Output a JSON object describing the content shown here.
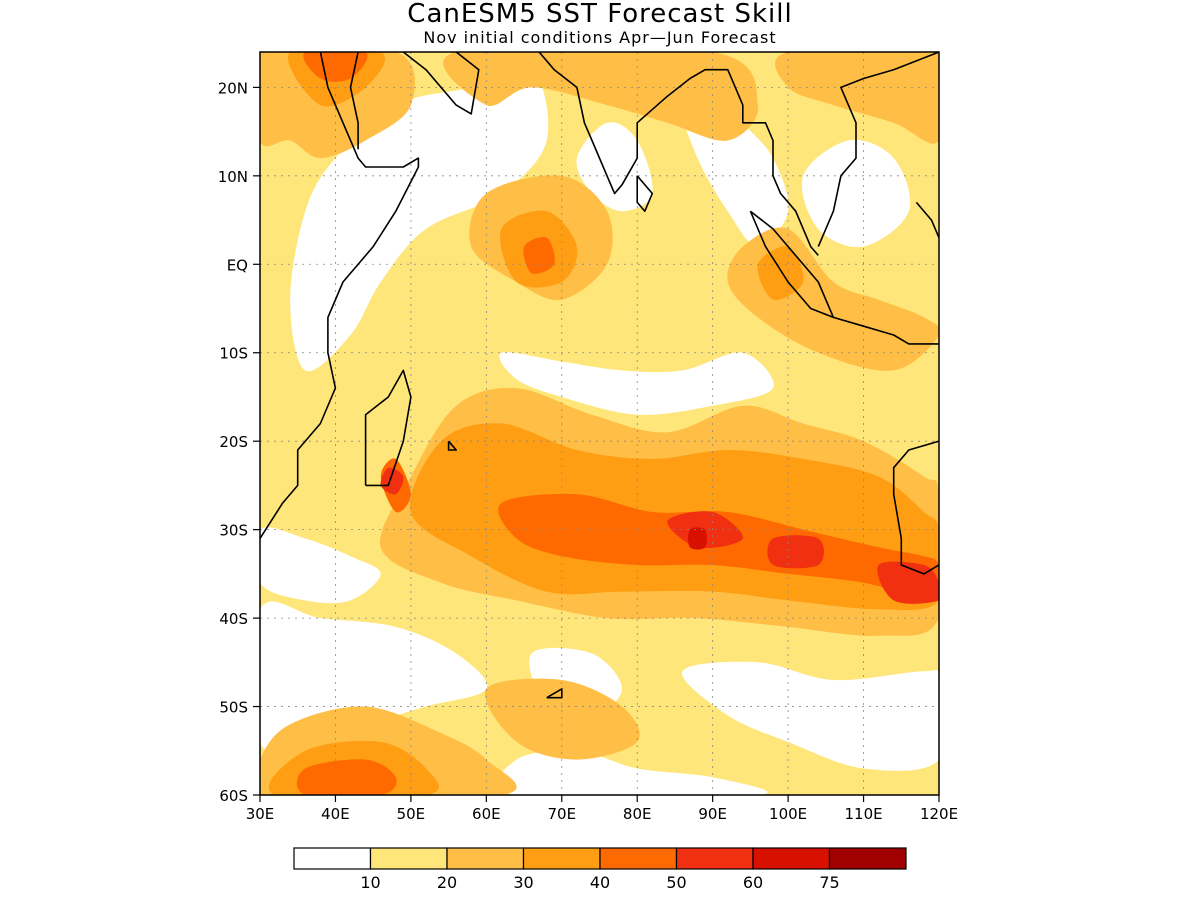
{
  "title": "CanESM5 SST Forecast Skill",
  "subtitle": "Nov initial conditions  Apr—Jun Forecast",
  "map": {
    "lon_range": [
      30,
      120
    ],
    "lat_range": [
      -60,
      24
    ],
    "lon_ticks": [
      {
        "value": 30,
        "label": "30E"
      },
      {
        "value": 40,
        "label": "40E"
      },
      {
        "value": 50,
        "label": "50E"
      },
      {
        "value": 60,
        "label": "60E"
      },
      {
        "value": 70,
        "label": "70E"
      },
      {
        "value": 80,
        "label": "80E"
      },
      {
        "value": 90,
        "label": "90E"
      },
      {
        "value": 100,
        "label": "100E"
      },
      {
        "value": 110,
        "label": "110E"
      },
      {
        "value": 120,
        "label": "120E"
      }
    ],
    "lat_ticks": [
      {
        "value": 20,
        "label": "20N"
      },
      {
        "value": 10,
        "label": "10N"
      },
      {
        "value": 0,
        "label": "EQ"
      },
      {
        "value": -10,
        "label": "10S"
      },
      {
        "value": -20,
        "label": "20S"
      },
      {
        "value": -30,
        "label": "30S"
      },
      {
        "value": -40,
        "label": "40S"
      },
      {
        "value": -50,
        "label": "50S"
      },
      {
        "value": -60,
        "label": "60S"
      }
    ],
    "gridlines": "dotted"
  },
  "colorbar": {
    "labels": [
      "10",
      "20",
      "30",
      "40",
      "50",
      "60",
      "75"
    ],
    "colors": [
      "#ffffff",
      "#ffe67a",
      "#ffbe46",
      "#ff9e12",
      "#ff6a00",
      "#f03010",
      "#d81000",
      "#a00000"
    ]
  },
  "skill_regions": [
    {
      "level": 1,
      "points": [
        [
          30,
          24
        ],
        [
          120,
          24
        ],
        [
          120,
          -60
        ],
        [
          30,
          -60
        ]
      ]
    },
    {
      "level": 0,
      "points": [
        [
          48,
          18
        ],
        [
          58,
          20
        ],
        [
          66,
          22
        ],
        [
          68,
          14
        ],
        [
          62,
          8
        ],
        [
          52,
          4
        ],
        [
          46,
          -2
        ],
        [
          42,
          -8
        ],
        [
          36,
          -12
        ],
        [
          34,
          -4
        ],
        [
          36,
          6
        ],
        [
          40,
          12
        ]
      ]
    },
    {
      "level": 0,
      "points": [
        [
          72,
          12
        ],
        [
          76,
          16
        ],
        [
          80,
          14
        ],
        [
          82,
          8
        ],
        [
          78,
          6
        ],
        [
          74,
          8
        ]
      ]
    },
    {
      "level": 0,
      "points": [
        [
          86,
          18
        ],
        [
          90,
          20
        ],
        [
          94,
          16
        ],
        [
          98,
          12
        ],
        [
          100,
          6
        ],
        [
          96,
          2
        ],
        [
          92,
          6
        ],
        [
          88,
          12
        ]
      ]
    },
    {
      "level": 0,
      "points": [
        [
          102,
          10
        ],
        [
          108,
          14
        ],
        [
          114,
          12
        ],
        [
          116,
          6
        ],
        [
          110,
          2
        ],
        [
          104,
          4
        ]
      ]
    },
    {
      "level": 0,
      "points": [
        [
          62,
          -10
        ],
        [
          70,
          -11
        ],
        [
          78,
          -12
        ],
        [
          86,
          -12
        ],
        [
          94,
          -10
        ],
        [
          98,
          -14
        ],
        [
          90,
          -16
        ],
        [
          80,
          -17
        ],
        [
          70,
          -15
        ],
        [
          64,
          -13
        ]
      ]
    },
    {
      "level": 0,
      "points": [
        [
          30,
          -30
        ],
        [
          36,
          -31
        ],
        [
          42,
          -33
        ],
        [
          46,
          -35
        ],
        [
          42,
          -38
        ],
        [
          36,
          -38
        ],
        [
          30,
          -36
        ]
      ]
    },
    {
      "level": 0,
      "points": [
        [
          30,
          -39
        ],
        [
          38,
          -40
        ],
        [
          48,
          -41
        ],
        [
          56,
          -44
        ],
        [
          60,
          -48
        ],
        [
          52,
          -50
        ],
        [
          44,
          -52
        ],
        [
          36,
          -54
        ],
        [
          30,
          -54
        ]
      ]
    },
    {
      "level": 0,
      "points": [
        [
          66,
          -44
        ],
        [
          74,
          -44
        ],
        [
          78,
          -48
        ],
        [
          74,
          -51
        ],
        [
          68,
          -50
        ]
      ]
    },
    {
      "level": 0,
      "points": [
        [
          86,
          -46
        ],
        [
          96,
          -45
        ],
        [
          106,
          -47
        ],
        [
          118,
          -46
        ],
        [
          120,
          -47
        ],
        [
          120,
          -56
        ],
        [
          110,
          -57
        ],
        [
          100,
          -54
        ],
        [
          92,
          -51
        ]
      ]
    },
    {
      "level": 0,
      "points": [
        [
          64,
          -56
        ],
        [
          72,
          -55
        ],
        [
          80,
          -57
        ],
        [
          90,
          -58
        ],
        [
          96,
          -60
        ],
        [
          64,
          -60
        ]
      ]
    },
    {
      "level": 2,
      "points": [
        [
          30,
          24
        ],
        [
          48,
          24
        ],
        [
          50,
          18
        ],
        [
          44,
          14
        ],
        [
          38,
          12
        ],
        [
          34,
          14
        ],
        [
          30,
          14
        ]
      ]
    },
    {
      "level": 2,
      "points": [
        [
          56,
          24
        ],
        [
          90,
          24
        ],
        [
          96,
          18
        ],
        [
          92,
          14
        ],
        [
          84,
          16
        ],
        [
          76,
          18
        ],
        [
          66,
          20
        ],
        [
          60,
          18
        ]
      ]
    },
    {
      "level": 2,
      "points": [
        [
          100,
          24
        ],
        [
          120,
          24
        ],
        [
          120,
          14
        ],
        [
          114,
          16
        ],
        [
          106,
          18
        ],
        [
          100,
          20
        ]
      ]
    },
    {
      "level": 2,
      "points": [
        [
          60,
          8
        ],
        [
          70,
          10
        ],
        [
          76,
          6
        ],
        [
          76,
          0
        ],
        [
          70,
          -4
        ],
        [
          64,
          -2
        ],
        [
          58,
          2
        ]
      ]
    },
    {
      "level": 2,
      "points": [
        [
          94,
          2
        ],
        [
          100,
          4
        ],
        [
          106,
          -2
        ],
        [
          112,
          -4
        ],
        [
          118,
          -6
        ],
        [
          120,
          -8
        ],
        [
          114,
          -12
        ],
        [
          104,
          -10
        ],
        [
          96,
          -6
        ],
        [
          92,
          -2
        ]
      ]
    },
    {
      "level": 2,
      "points": [
        [
          50,
          -24
        ],
        [
          56,
          -16
        ],
        [
          64,
          -14
        ],
        [
          74,
          -17
        ],
        [
          84,
          -19
        ],
        [
          94,
          -16
        ],
        [
          102,
          -18
        ],
        [
          110,
          -20
        ],
        [
          118,
          -24
        ],
        [
          120,
          -26
        ],
        [
          120,
          -40
        ],
        [
          112,
          -42
        ],
        [
          100,
          -41
        ],
        [
          88,
          -40
        ],
        [
          76,
          -40
        ],
        [
          64,
          -38
        ],
        [
          54,
          -36
        ],
        [
          46,
          -32
        ]
      ]
    },
    {
      "level": 2,
      "points": [
        [
          34,
          -52
        ],
        [
          44,
          -50
        ],
        [
          54,
          -53
        ],
        [
          60,
          -56
        ],
        [
          62,
          -60
        ],
        [
          30,
          -60
        ],
        [
          30,
          -56
        ]
      ]
    },
    {
      "level": 2,
      "points": [
        [
          60,
          -48
        ],
        [
          70,
          -47
        ],
        [
          78,
          -50
        ],
        [
          80,
          -54
        ],
        [
          72,
          -56
        ],
        [
          64,
          -54
        ]
      ]
    },
    {
      "level": 3,
      "points": [
        [
          34,
          24
        ],
        [
          46,
          24
        ],
        [
          44,
          20
        ],
        [
          38,
          18
        ]
      ]
    },
    {
      "level": 3,
      "points": [
        [
          62,
          4
        ],
        [
          68,
          6
        ],
        [
          72,
          2
        ],
        [
          70,
          -2
        ],
        [
          64,
          -2
        ]
      ]
    },
    {
      "level": 3,
      "points": [
        [
          96,
          0
        ],
        [
          100,
          2
        ],
        [
          102,
          -2
        ],
        [
          98,
          -4
        ]
      ]
    },
    {
      "level": 3,
      "points": [
        [
          54,
          -20
        ],
        [
          62,
          -18
        ],
        [
          72,
          -21
        ],
        [
          82,
          -22
        ],
        [
          92,
          -21
        ],
        [
          102,
          -22
        ],
        [
          112,
          -24
        ],
        [
          118,
          -28
        ],
        [
          120,
          -30
        ],
        [
          120,
          -38
        ],
        [
          112,
          -39
        ],
        [
          100,
          -38
        ],
        [
          90,
          -37
        ],
        [
          78,
          -37
        ],
        [
          68,
          -37
        ],
        [
          58,
          -33
        ],
        [
          50,
          -28
        ]
      ]
    },
    {
      "level": 3,
      "points": [
        [
          36,
          -55
        ],
        [
          46,
          -54
        ],
        [
          52,
          -57
        ],
        [
          52,
          -60
        ],
        [
          32,
          -60
        ]
      ]
    },
    {
      "level": 4,
      "points": [
        [
          36,
          24
        ],
        [
          44,
          24
        ],
        [
          42,
          21
        ],
        [
          38,
          21
        ]
      ]
    },
    {
      "level": 4,
      "points": [
        [
          65,
          2
        ],
        [
          68,
          3
        ],
        [
          69,
          0
        ],
        [
          66,
          -1
        ]
      ]
    },
    {
      "level": 4,
      "points": [
        [
          48,
          -22
        ],
        [
          50,
          -26
        ],
        [
          48,
          -28
        ],
        [
          46,
          -24
        ]
      ]
    },
    {
      "level": 4,
      "points": [
        [
          62,
          -27
        ],
        [
          72,
          -26
        ],
        [
          82,
          -28
        ],
        [
          92,
          -28
        ],
        [
          102,
          -30
        ],
        [
          112,
          -32
        ],
        [
          118,
          -33
        ],
        [
          120,
          -34
        ],
        [
          120,
          -38
        ],
        [
          110,
          -36
        ],
        [
          100,
          -35
        ],
        [
          90,
          -34
        ],
        [
          80,
          -34
        ],
        [
          70,
          -33
        ],
        [
          64,
          -31
        ]
      ]
    },
    {
      "level": 4,
      "points": [
        [
          36,
          -57
        ],
        [
          44,
          -56
        ],
        [
          48,
          -58
        ],
        [
          46,
          -60
        ],
        [
          36,
          -60
        ]
      ]
    },
    {
      "level": 5,
      "points": [
        [
          47,
          -23
        ],
        [
          49,
          -24
        ],
        [
          48,
          -26
        ],
        [
          46,
          -25
        ]
      ]
    },
    {
      "level": 5,
      "points": [
        [
          84,
          -29
        ],
        [
          90,
          -28
        ],
        [
          94,
          -31
        ],
        [
          88,
          -32
        ]
      ]
    },
    {
      "level": 5,
      "points": [
        [
          98,
          -31
        ],
        [
          104,
          -31
        ],
        [
          104,
          -34
        ],
        [
          98,
          -34
        ]
      ]
    },
    {
      "level": 5,
      "points": [
        [
          112,
          -34
        ],
        [
          118,
          -34
        ],
        [
          120,
          -36
        ],
        [
          120,
          -38
        ],
        [
          114,
          -38
        ]
      ]
    },
    {
      "level": 6,
      "points": [
        [
          87,
          -30
        ],
        [
          89,
          -30
        ],
        [
          89,
          -32
        ],
        [
          87,
          -32
        ]
      ]
    }
  ],
  "coastlines": [
    [
      [
        38,
        24
      ],
      [
        39,
        20
      ],
      [
        41,
        16
      ],
      [
        43,
        12
      ],
      [
        44,
        11
      ],
      [
        49,
        11
      ],
      [
        51,
        12
      ],
      [
        51,
        11
      ],
      [
        48,
        6
      ],
      [
        45,
        2
      ],
      [
        41,
        -2
      ],
      [
        39,
        -6
      ],
      [
        39,
        -10
      ],
      [
        40,
        -14
      ],
      [
        38,
        -18
      ],
      [
        35,
        -21
      ],
      [
        35,
        -25
      ],
      [
        33,
        -27
      ],
      [
        30,
        -31
      ]
    ],
    [
      [
        43,
        24
      ],
      [
        42,
        20
      ],
      [
        43,
        16
      ],
      [
        43,
        13
      ]
    ],
    [
      [
        49,
        24
      ],
      [
        52,
        22
      ],
      [
        56,
        18
      ],
      [
        58,
        17
      ],
      [
        59,
        22
      ],
      [
        56,
        24
      ]
    ],
    [
      [
        67,
        24
      ],
      [
        69,
        22
      ],
      [
        72,
        20
      ],
      [
        73,
        16
      ],
      [
        74,
        14
      ],
      [
        76,
        10
      ],
      [
        77,
        8
      ],
      [
        78,
        9
      ],
      [
        80,
        12
      ],
      [
        80,
        16
      ],
      [
        84,
        19
      ],
      [
        87,
        21
      ],
      [
        89,
        22
      ],
      [
        92,
        22
      ],
      [
        94,
        18
      ],
      [
        94,
        16
      ],
      [
        97,
        16
      ],
      [
        98,
        14
      ],
      [
        98,
        10
      ],
      [
        99,
        8
      ],
      [
        101,
        6
      ],
      [
        103,
        2
      ],
      [
        104,
        1
      ]
    ],
    [
      [
        80,
        10
      ],
      [
        82,
        8
      ],
      [
        81,
        6
      ],
      [
        80,
        7
      ],
      [
        80,
        10
      ]
    ],
    [
      [
        95,
        6
      ],
      [
        98,
        4
      ],
      [
        104,
        -2
      ],
      [
        106,
        -6
      ],
      [
        103,
        -5
      ],
      [
        100,
        -2
      ],
      [
        97,
        2
      ],
      [
        95,
        6
      ]
    ],
    [
      [
        106,
        -6
      ],
      [
        110,
        -7
      ],
      [
        114,
        -8
      ],
      [
        116,
        -9
      ],
      [
        120,
        -9
      ]
    ],
    [
      [
        104,
        2
      ],
      [
        106,
        6
      ],
      [
        107,
        10
      ],
      [
        109,
        12
      ],
      [
        109,
        16
      ],
      [
        107,
        20
      ],
      [
        110,
        21
      ],
      [
        114,
        22
      ],
      [
        120,
        24
      ]
    ],
    [
      [
        117,
        7
      ],
      [
        119,
        5
      ],
      [
        120,
        3
      ]
    ],
    [
      [
        44,
        -25
      ],
      [
        47,
        -25
      ],
      [
        49,
        -20
      ],
      [
        50,
        -15
      ],
      [
        49,
        -12
      ],
      [
        47,
        -15
      ],
      [
        44,
        -17
      ],
      [
        44,
        -22
      ],
      [
        44,
        -25
      ]
    ],
    [
      [
        120,
        -20
      ],
      [
        116,
        -21
      ],
      [
        114,
        -23
      ],
      [
        114,
        -26
      ],
      [
        115,
        -31
      ],
      [
        115,
        -34
      ],
      [
        118,
        -35
      ],
      [
        120,
        -34
      ]
    ],
    [
      [
        68,
        -49
      ],
      [
        70,
        -48
      ],
      [
        70,
        -49
      ],
      [
        68,
        -49
      ]
    ],
    [
      [
        55,
        -20
      ],
      [
        56,
        -21
      ],
      [
        55,
        -21
      ],
      [
        55,
        -20
      ]
    ]
  ]
}
